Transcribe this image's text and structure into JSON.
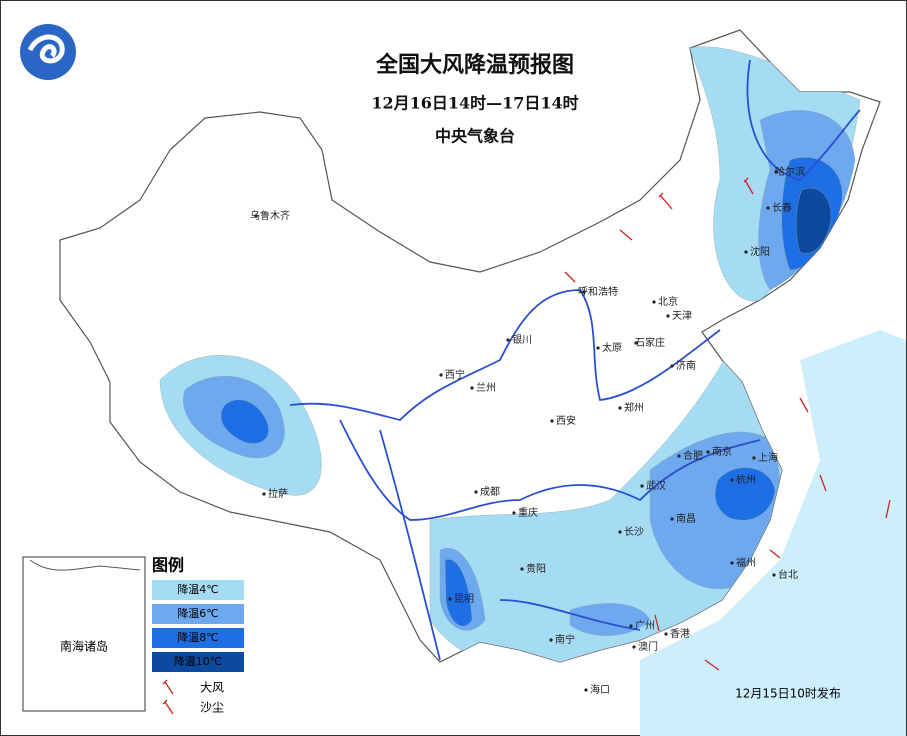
{
  "header": {
    "title": "全国大风降温预报图",
    "subtitle": "12月16日14时—17日14时",
    "issuer": "中央气象台"
  },
  "cities": [
    "乌鲁木齐",
    "哈尔滨",
    "长春",
    "沈阳",
    "呼和浩特",
    "北京",
    "天津",
    "银川",
    "太原",
    "石家庄",
    "济南",
    "西宁",
    "兰州",
    "郑州",
    "西安",
    "合肥",
    "南京",
    "上海",
    "拉萨",
    "成都",
    "武汉",
    "杭州",
    "重庆",
    "南昌",
    "长沙",
    "贵阳",
    "福州",
    "台北",
    "昆明",
    "南宁",
    "广州",
    "香港",
    "澳门",
    "海口"
  ],
  "legend": {
    "title": "图例",
    "cooling": [
      {
        "label": "降温4℃",
        "color": "#a6dcf3"
      },
      {
        "label": "降温6℃",
        "color": "#6ea8ee"
      },
      {
        "label": "降温8℃",
        "color": "#1f6fe4"
      },
      {
        "label": "降温10℃",
        "color": "#0b4a9e"
      }
    ],
    "symbols": [
      "大风",
      "沙尘"
    ]
  },
  "inset": {
    "label": "南海诸岛"
  },
  "footer": {
    "issued": "12月15日10时发布"
  }
}
